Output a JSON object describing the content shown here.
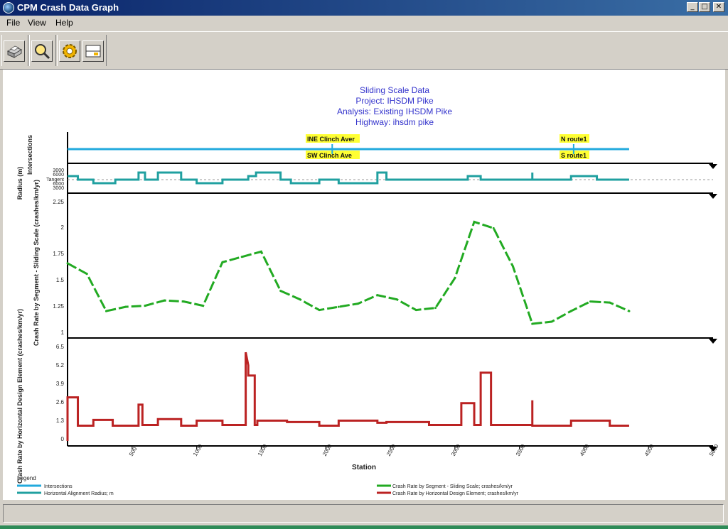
{
  "window": {
    "title": "CPM Crash Data Graph",
    "controls": {
      "minimize": "_",
      "maximize": "□",
      "close": "✕"
    }
  },
  "menu": {
    "items": [
      "File",
      "View",
      "Help"
    ]
  },
  "toolbar": {
    "buttons": [
      {
        "icon": "print-icon"
      },
      {
        "icon": "zoom-icon"
      },
      {
        "icon": "settings-icon"
      },
      {
        "icon": "display-options-icon"
      }
    ]
  },
  "chart": {
    "title_lines": [
      "Sliding Scale Data",
      "Project: IHSDM Pike",
      "Analysis: Existing IHSDM Pike",
      "Highway: ihsdm pike"
    ],
    "title_color": "#3333cc",
    "colors": {
      "intersections": "#22aadd",
      "radius": "#20a0a0",
      "segment": "#22aa22",
      "element": "#bb2222",
      "label_bg": "#ffff33"
    },
    "panels": {
      "intersections": {
        "ylabel": "Intersections",
        "labels_top": [
          {
            "text": "INE Clinch Aver",
            "station": 2050
          },
          {
            "text": "N route1",
            "station": 3920
          }
        ],
        "labels_bottom": [
          {
            "text": "SW Clinch Ave",
            "station": 2050
          },
          {
            "text": "S route1",
            "station": 3920
          }
        ]
      },
      "radius": {
        "ylabel": "Radius (m)",
        "ticks": [
          "3000",
          "6000",
          "Tangent",
          "6000",
          "3000"
        ]
      },
      "segment": {
        "ylabel": "Crash Rate by Segment - Sliding Scale (crashes/km/yr)",
        "ticks": [
          "2.25",
          "2",
          "1.75",
          "1.5",
          "1.25",
          "1"
        ]
      },
      "element": {
        "ylabel": "Crash Rate by Horizontal Design Element (crashes/km/yr)",
        "ticks": [
          "6.5",
          "5.2",
          "3.9",
          "2.6",
          "1.3",
          "0"
        ]
      }
    },
    "x_ticks": [
      "500",
      "1000",
      "1500",
      "2000",
      "2500",
      "3000",
      "3500",
      "4000",
      "4500",
      "5000"
    ],
    "x_label": "Station",
    "legend": {
      "title": "Legend",
      "items": [
        "Intersections",
        "Horizontal Alignment Radius; m",
        "Crash Rate by Segment - Sliding Scale; crashes/km/yr",
        "Crash Rate by Horizontal Design Element; crashes/km/yr"
      ]
    }
  },
  "chart_data": [
    {
      "type": "line",
      "series": [
        {
          "name": "Intersections",
          "x": [
            0,
            4350
          ],
          "y": [
            0,
            0
          ],
          "markers": [
            2050,
            3920
          ]
        }
      ]
    },
    {
      "type": "line",
      "ylabel": "Radius (m)",
      "series": [
        {
          "name": "Horizontal Alignment Radius; m",
          "x": [
            0,
            80,
            80,
            200,
            200,
            370,
            370,
            550,
            550,
            600,
            600,
            700,
            700,
            880,
            880,
            1000,
            1000,
            1200,
            1200,
            1400,
            1400,
            1460,
            1460,
            1650,
            1650,
            1730,
            1730,
            1950,
            1950,
            2100,
            2100,
            2400,
            2400,
            2470,
            2470,
            2800,
            2800,
            3100,
            3100,
            3200,
            3200,
            3300,
            3300,
            3600,
            3600,
            3600,
            3600,
            3900,
            3900,
            4100,
            4100,
            4350
          ],
          "y": [
            1,
            1,
            0,
            0,
            -1,
            -1,
            0,
            0,
            2,
            2,
            0,
            0,
            2,
            2,
            0,
            0,
            -1,
            -1,
            0,
            0,
            1,
            1,
            2,
            2,
            0,
            0,
            -1,
            -1,
            0,
            0,
            -1,
            -1,
            2,
            2,
            0,
            0,
            0,
            0,
            1,
            1,
            0,
            0,
            0,
            0,
            2,
            0,
            0,
            0,
            1,
            1,
            0,
            0
          ]
        }
      ]
    },
    {
      "type": "line",
      "ylabel": "Crash Rate by Segment - Sliding Scale (crashes/km/yr)",
      "ylim": [
        1,
        2.25
      ],
      "series": [
        {
          "name": "Crash Rate by Segment - Sliding Scale; crashes/km/yr",
          "x": [
            0,
            150,
            300,
            450,
            600,
            750,
            900,
            1050,
            1200,
            1350,
            1500,
            1650,
            1800,
            1950,
            2100,
            2250,
            2400,
            2550,
            2700,
            2850,
            3000,
            3150,
            3300,
            3450,
            3600,
            3750,
            3900,
            4050,
            4200,
            4350
          ],
          "y": [
            1.67,
            1.57,
            1.22,
            1.26,
            1.27,
            1.32,
            1.31,
            1.27,
            1.68,
            1.73,
            1.78,
            1.41,
            1.33,
            1.23,
            1.26,
            1.29,
            1.37,
            1.33,
            1.23,
            1.25,
            1.53,
            2.06,
            2.0,
            1.64,
            1.1,
            1.12,
            1.22,
            1.31,
            1.3,
            1.22
          ]
        }
      ]
    },
    {
      "type": "line",
      "ylabel": "Crash Rate by Horizontal Design Element (crashes/km/yr)",
      "ylim": [
        0,
        6.5
      ],
      "series": [
        {
          "name": "Crash Rate by Horizontal Design Element; crashes/km/yr",
          "x": [
            0,
            0,
            80,
            80,
            200,
            200,
            350,
            350,
            550,
            550,
            580,
            580,
            700,
            700,
            880,
            880,
            1000,
            1000,
            1200,
            1200,
            1380,
            1380,
            1400,
            1400,
            1450,
            1450,
            1470,
            1470,
            1700,
            1700,
            1950,
            1950,
            2100,
            2100,
            2400,
            2400,
            2470,
            2470,
            2800,
            2800,
            3050,
            3050,
            3150,
            3150,
            3200,
            3200,
            3280,
            3280,
            3600,
            3600,
            3600,
            3600,
            3900,
            3900,
            4200,
            4200,
            4350
          ],
          "y": [
            0,
            3.0,
            3.0,
            1.05,
            1.05,
            1.45,
            1.45,
            1.05,
            1.05,
            2.5,
            2.5,
            1.1,
            1.1,
            1.5,
            1.5,
            1.05,
            1.05,
            1.4,
            1.4,
            1.1,
            1.1,
            6.1,
            5.2,
            4.5,
            4.5,
            1.1,
            1.1,
            1.4,
            1.4,
            1.3,
            1.3,
            1.05,
            1.05,
            1.4,
            1.4,
            1.25,
            1.25,
            1.3,
            1.3,
            1.1,
            1.1,
            2.6,
            2.6,
            1.1,
            1.1,
            4.7,
            4.7,
            1.1,
            1.1,
            2.8,
            1.1,
            1.05,
            1.05,
            1.4,
            1.4,
            1.05,
            1.05
          ]
        }
      ]
    }
  ]
}
